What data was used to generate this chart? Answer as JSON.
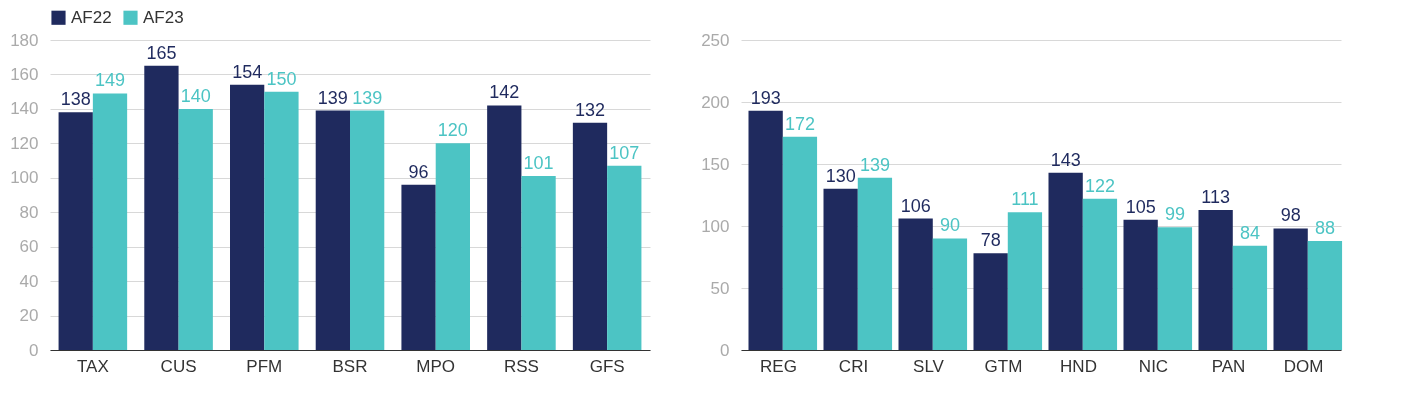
{
  "chart_data": [
    {
      "type": "bar",
      "categories": [
        "TAX",
        "CUS",
        "PFM",
        "BSR",
        "MPO",
        "RSS",
        "GFS"
      ],
      "series": [
        {
          "name": "AF22",
          "color": "#1f2a5e",
          "values": [
            138,
            165,
            154,
            139,
            96,
            142,
            132
          ]
        },
        {
          "name": "AF23",
          "color": "#4cc4c4",
          "values": [
            149,
            140,
            150,
            139,
            120,
            101,
            107
          ]
        }
      ],
      "ylim": [
        0,
        180
      ],
      "yticks": [
        0,
        20,
        40,
        60,
        80,
        100,
        120,
        140,
        160,
        180
      ],
      "grid": "y",
      "legend": "top left",
      "data_labels": true
    },
    {
      "type": "bar",
      "categories": [
        "REG",
        "CRI",
        "SLV",
        "GTM",
        "HND",
        "NIC",
        "PAN",
        "DOM"
      ],
      "series": [
        {
          "color": "#1f2a5e",
          "values": [
            193,
            130,
            106,
            78,
            143,
            105,
            113,
            98
          ]
        },
        {
          "color": "#4cc4c4",
          "values": [
            172,
            139,
            90,
            111,
            122,
            99,
            84,
            88
          ]
        }
      ],
      "ylim": [
        0,
        250
      ],
      "yticks": [
        0,
        50,
        100,
        150,
        200,
        250
      ],
      "grid": "y",
      "data_labels": true
    }
  ]
}
